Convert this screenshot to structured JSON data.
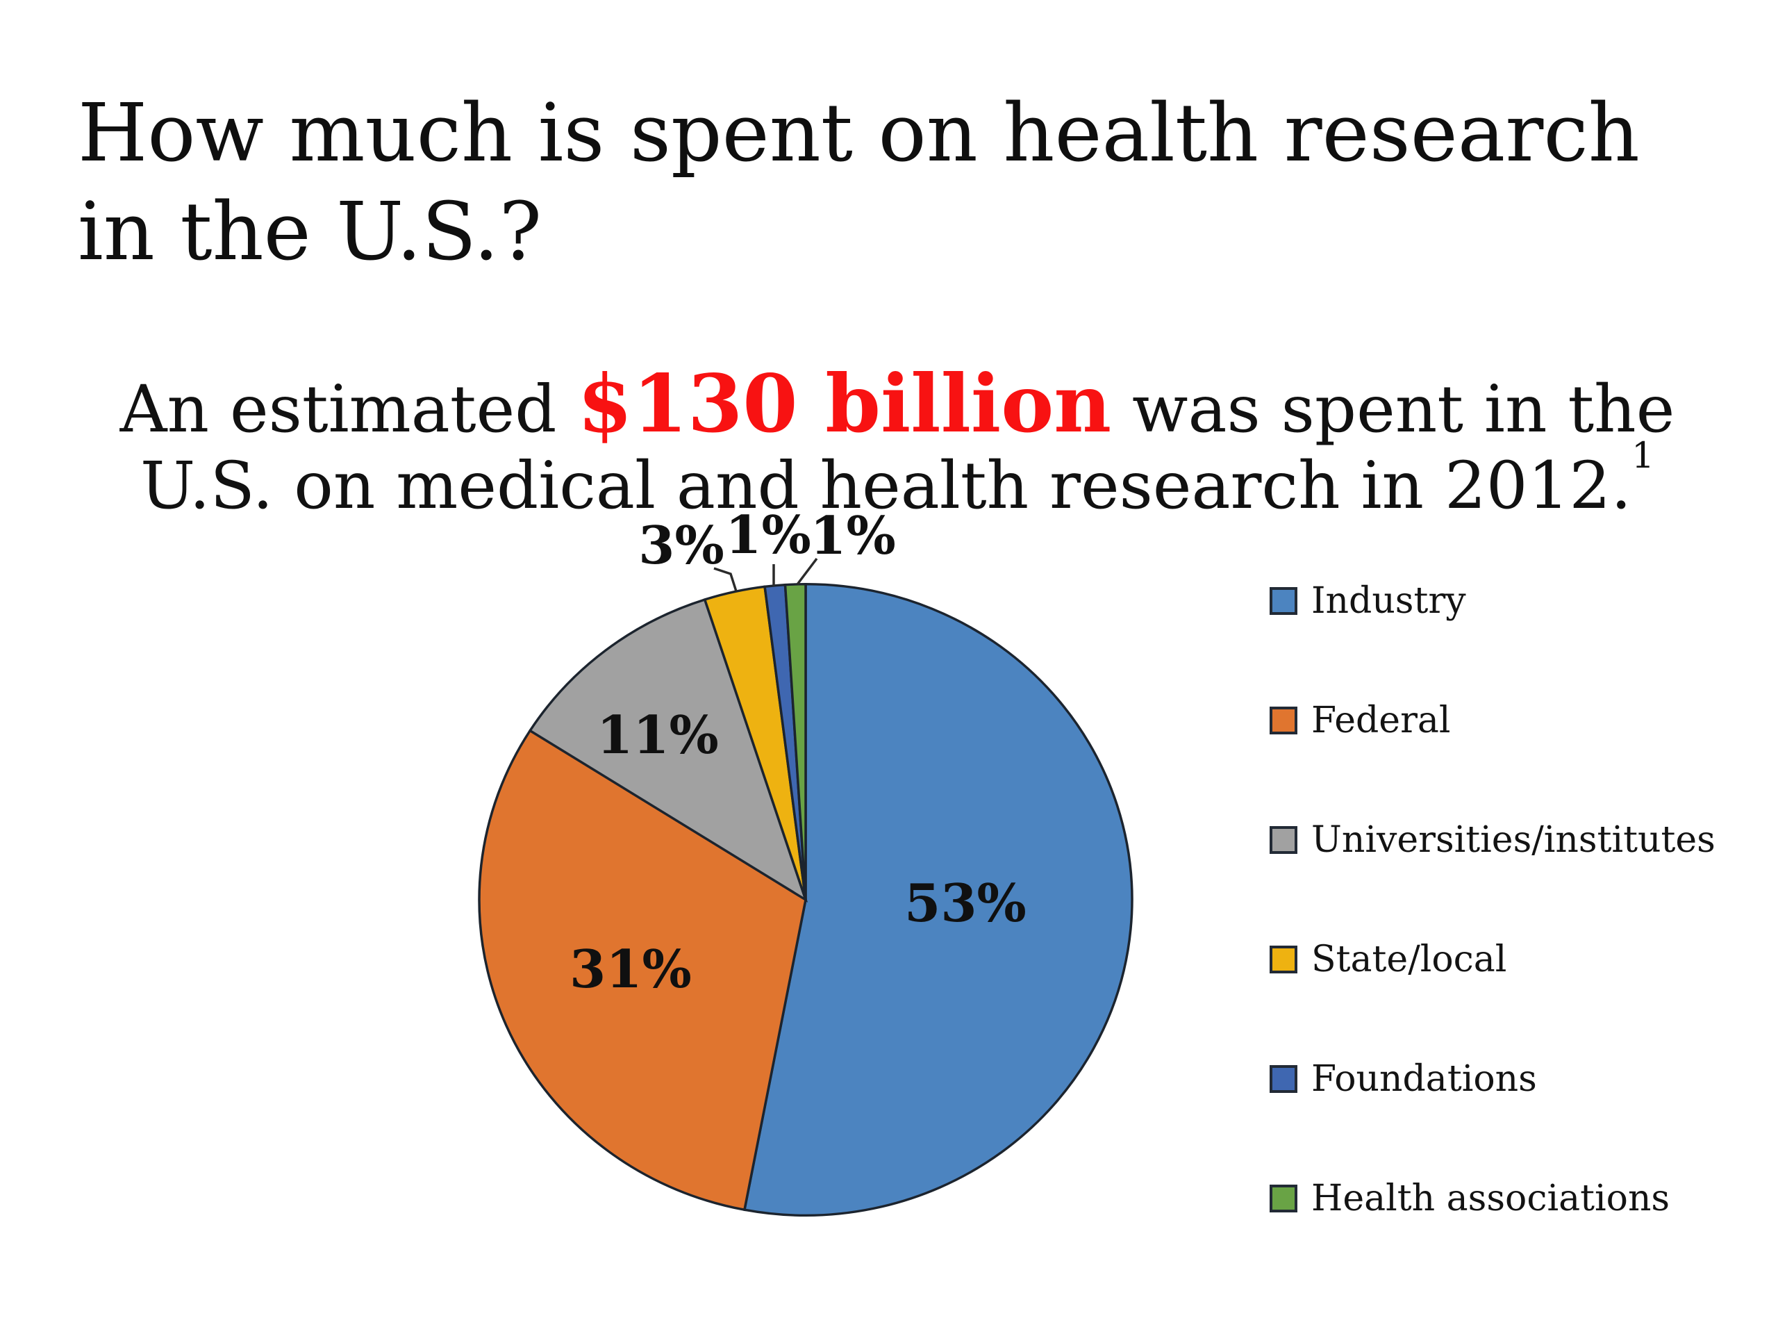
{
  "slide": {
    "title_line1": "How much is spent on health research",
    "title_line2": "in the U.S.?",
    "subtitle": {
      "line1_prefix": "An estimated ",
      "line1_highlight": "$130 billion",
      "line1_suffix": " was spent in the",
      "line2": "U.S. on medical and health research in 2012.",
      "footnote_superscript": "1",
      "highlight_color": "#f81212"
    }
  },
  "chart_data": {
    "type": "pie",
    "categories": [
      "Industry",
      "Federal",
      "Universities/institutes",
      "State/local",
      "Foundations",
      "Health associations"
    ],
    "values": [
      53,
      31,
      11,
      3,
      1,
      1
    ],
    "unit": "percent",
    "slice_labels": [
      "53%",
      "31%",
      "11%",
      "3%",
      "1%",
      "1%"
    ],
    "colors": [
      "#4c84c0",
      "#e0752f",
      "#a1a1a1",
      "#eeb211",
      "#3f67b1",
      "#69a345"
    ],
    "slice_border_color": "#1c242e",
    "start_angle_deg": 0,
    "direction": "clockwise",
    "legend_position": "right",
    "grid": false
  },
  "legend": {
    "items": [
      {
        "label": "Industry",
        "color": "#4c84c0"
      },
      {
        "label": "Federal",
        "color": "#e0752f"
      },
      {
        "label": "Universities/institutes",
        "color": "#a1a1a1"
      },
      {
        "label": "State/local",
        "color": "#eeb211"
      },
      {
        "label": "Foundations",
        "color": "#3f67b1"
      },
      {
        "label": "Health associations",
        "color": "#69a345"
      }
    ]
  }
}
